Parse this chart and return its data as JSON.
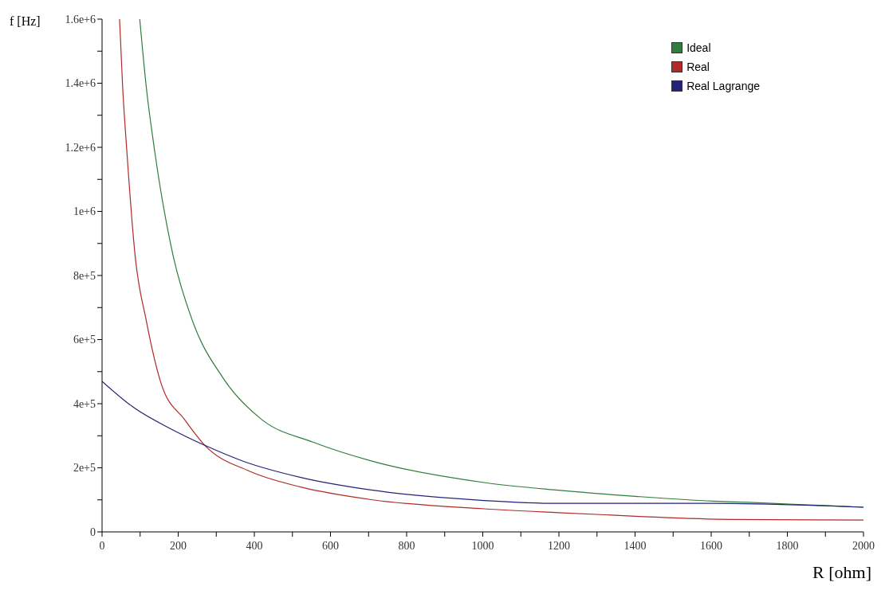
{
  "chart_data": {
    "type": "line",
    "xlabel": "R [ohm]",
    "ylabel": "f [Hz]",
    "xlim": [
      0,
      2000
    ],
    "xticks": [
      0,
      {
        "value": 100,
        "label": null
      },
      200,
      {
        "value": 300,
        "label": null
      },
      400,
      {
        "value": 500,
        "label": null
      },
      600,
      {
        "value": 700,
        "label": null
      },
      800,
      {
        "value": 900,
        "label": null
      },
      1000,
      {
        "value": 1100,
        "label": null
      },
      1200,
      {
        "value": 1300,
        "label": null
      },
      1400,
      {
        "value": 1500,
        "label": null
      },
      1600,
      {
        "value": 1700,
        "label": null
      },
      1800,
      {
        "value": 1900,
        "label": null
      },
      2000
    ],
    "ylim": [
      0,
      1600000
    ],
    "yticks": [
      {
        "value": 0,
        "label": "0"
      },
      {
        "value": 100000,
        "label": null
      },
      {
        "value": 200000,
        "label": "2e+5"
      },
      {
        "value": 300000,
        "label": null
      },
      {
        "value": 400000,
        "label": "4e+5"
      },
      {
        "value": 500000,
        "label": null
      },
      {
        "value": 600000,
        "label": "6e+5"
      },
      {
        "value": 700000,
        "label": null
      },
      {
        "value": 800000,
        "label": "8e+5"
      },
      {
        "value": 900000,
        "label": null
      },
      {
        "value": 1000000,
        "label": "1e+6"
      },
      {
        "value": 1100000,
        "label": null
      },
      {
        "value": 1200000,
        "label": "1.2e+6"
      },
      {
        "value": 1300000,
        "label": null
      },
      {
        "value": 1400000,
        "label": "1.4e+6"
      },
      {
        "value": 1500000,
        "label": null
      },
      {
        "value": 1600000,
        "label": "1.6e+6"
      }
    ],
    "grid": false,
    "legend": "top right",
    "marker": "none",
    "line_style": "solid",
    "series": [
      {
        "name": "Ideal",
        "color": "#2e7d3a",
        "x": [
          99,
          116,
          138,
          187,
          237,
          318,
          420,
          554,
          711,
          1003,
          1198,
          1401,
          1604,
          1700,
          2000
        ],
        "values": [
          1600000,
          1390000,
          1190000,
          860000,
          660000,
          480000,
          350000,
          280000,
          220000,
          154000,
          130000,
          111000,
          96000,
          92000,
          77000
        ]
      },
      {
        "name": "Real",
        "color": "#b02a2a",
        "x": [
          46,
          54,
          65,
          87,
          116,
          156,
          217,
          270,
          386,
          522,
          711,
          1003,
          1198,
          1401,
          1650,
          2000
        ],
        "values": [
          1600000,
          1390000,
          1190000,
          860000,
          660000,
          460000,
          350000,
          270000,
          190000,
          140000,
          100000,
          72000,
          60000,
          49000,
          39000,
          37000
        ]
      },
      {
        "name": "Real Lagrange",
        "color": "#22227a",
        "x": [
          0,
          81,
          183,
          270,
          372,
          522,
          711,
          1003,
          1198,
          1604,
          2000
        ],
        "values": [
          470000,
          390000,
          320000,
          270000,
          220000,
          170000,
          130000,
          98000,
          89000,
          89000,
          77000
        ]
      }
    ]
  }
}
